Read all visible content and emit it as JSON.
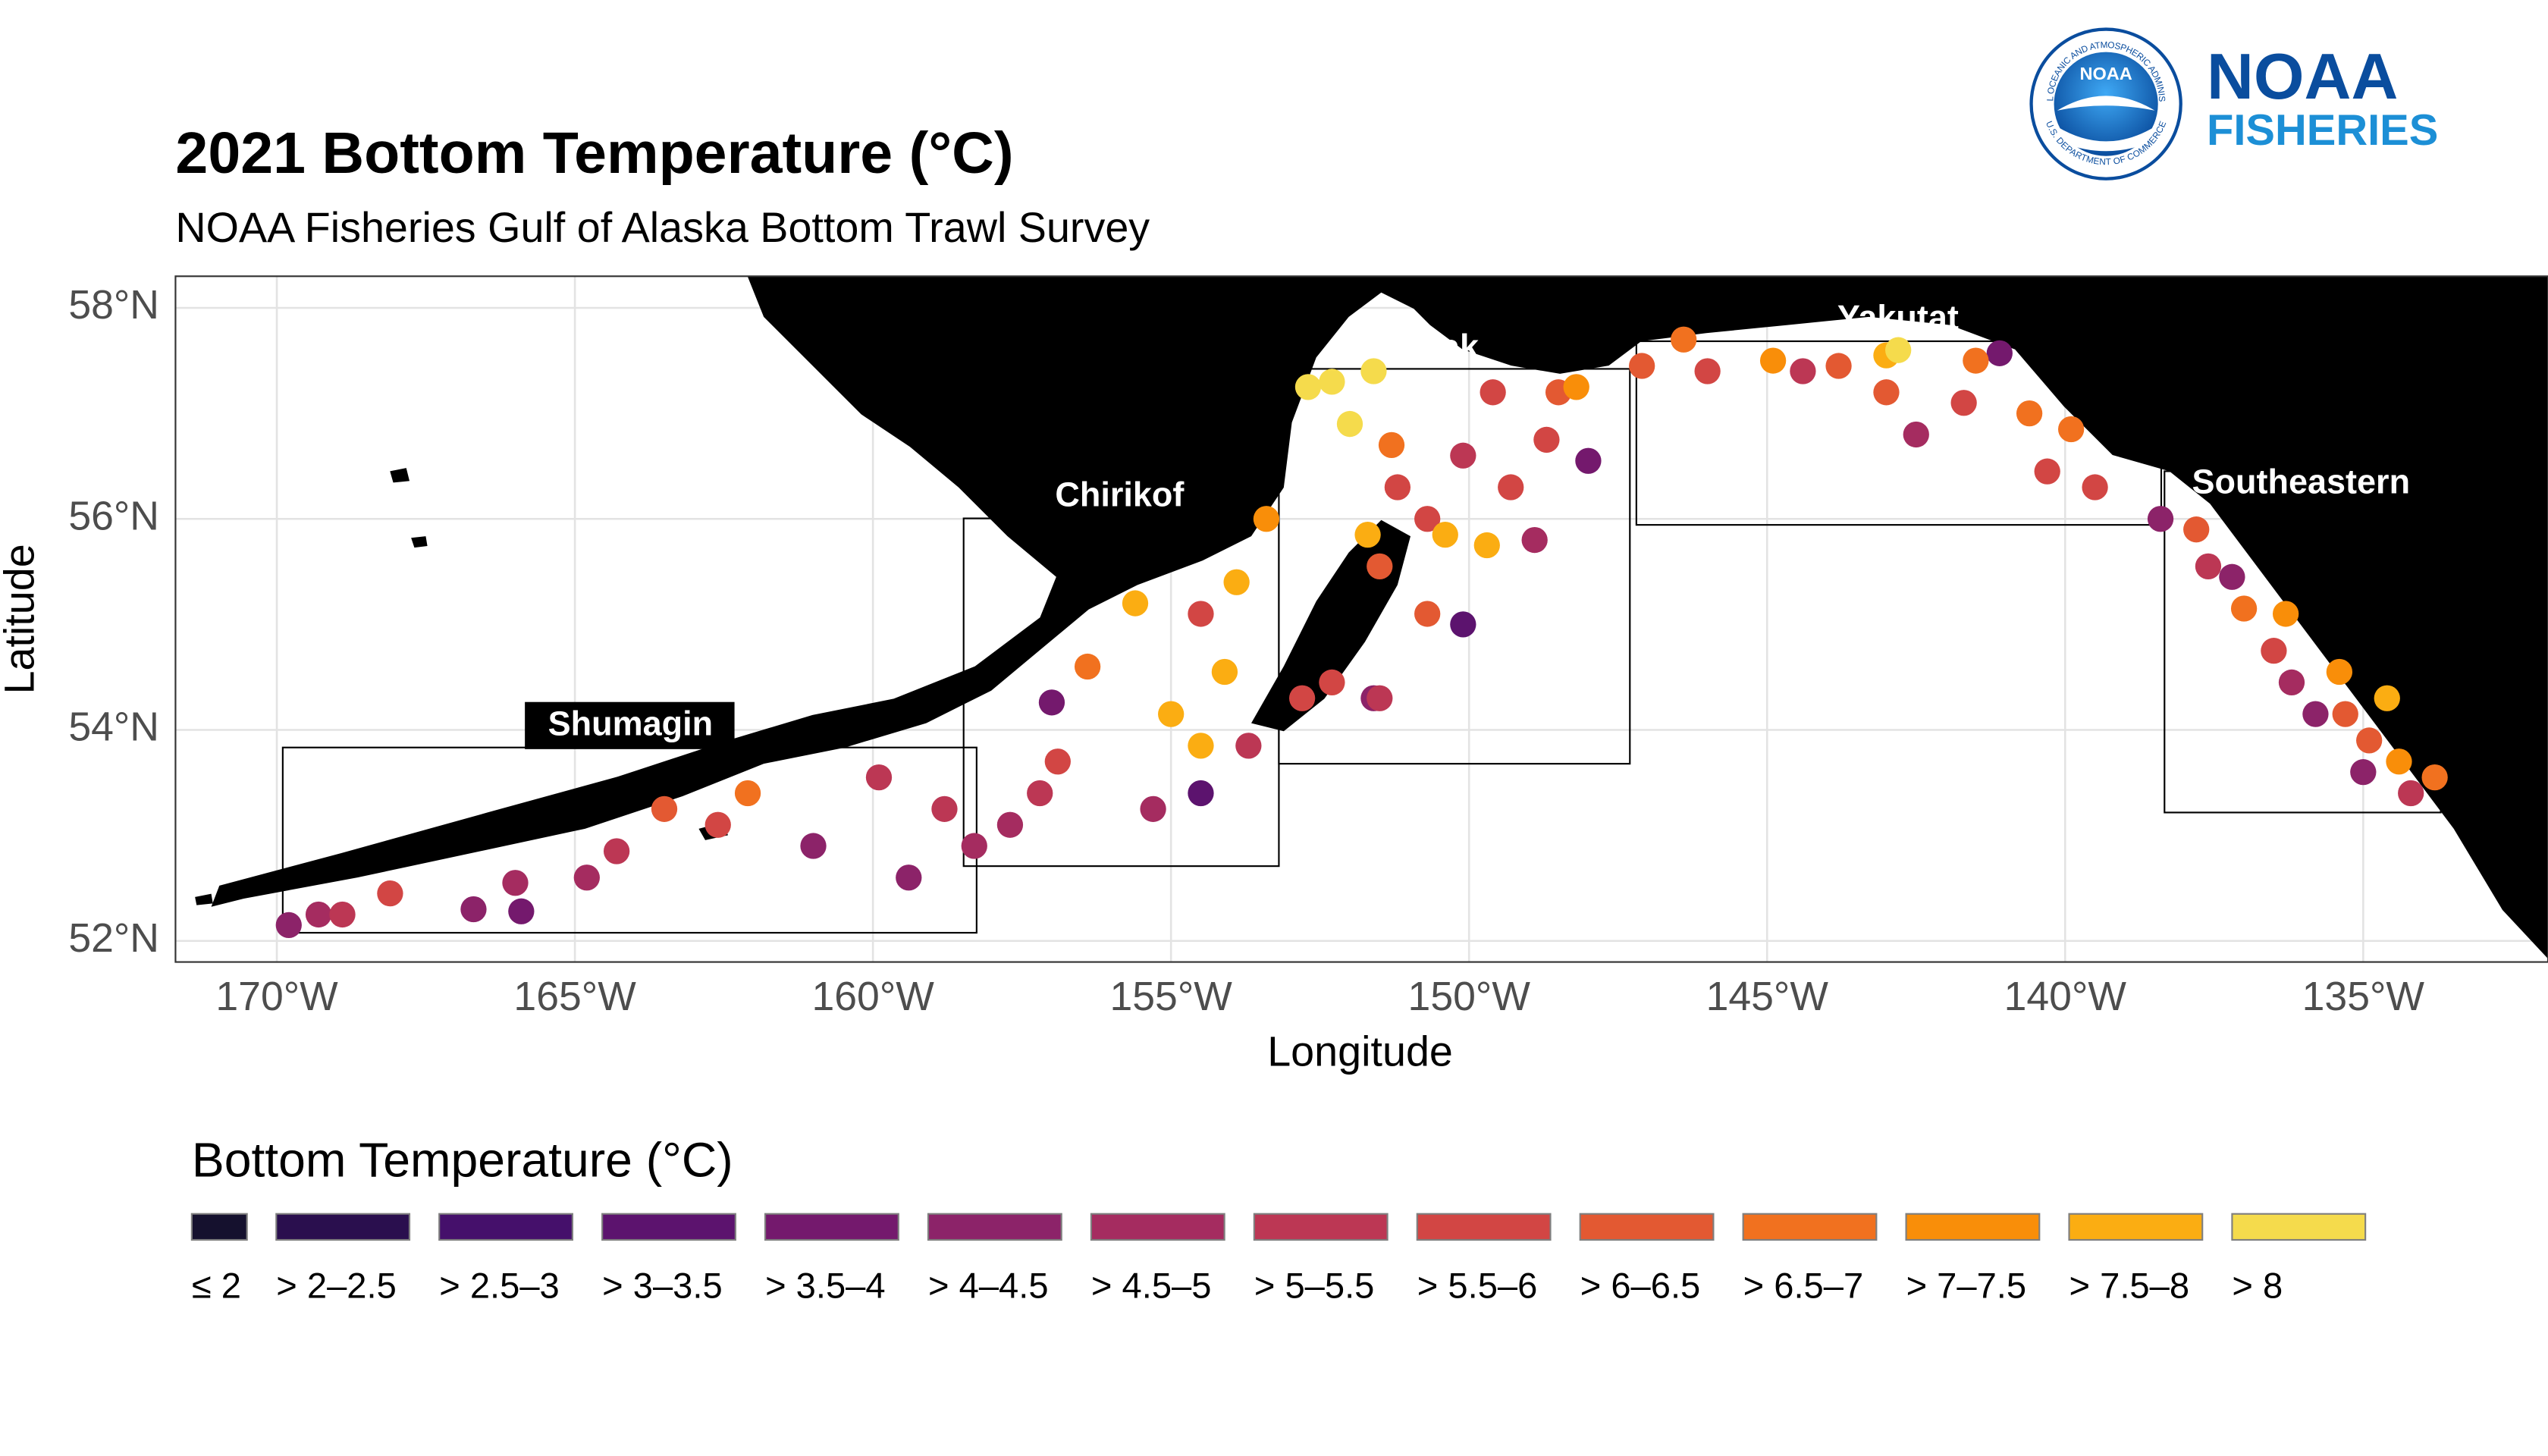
{
  "chart_data": {
    "type": "map",
    "title": "2021 Bottom Temperature (°C)",
    "subtitle": "NOAA Fisheries Gulf of Alaska Bottom Trawl Survey",
    "x_label": "Longitude",
    "y_label": "Latitude",
    "xlim": [
      -171.7,
      -131.9
    ],
    "ylim": [
      51.8,
      58.3
    ],
    "xticks": [
      {
        "value": -170,
        "label": "170°W"
      },
      {
        "value": -165,
        "label": "165°W"
      },
      {
        "value": -160,
        "label": "160°W"
      },
      {
        "value": -155,
        "label": "155°W"
      },
      {
        "value": -150,
        "label": "150°W"
      },
      {
        "value": -145,
        "label": "145°W"
      },
      {
        "value": -140,
        "label": "140°W"
      },
      {
        "value": -135,
        "label": "135°W"
      }
    ],
    "yticks": [
      {
        "value": 52,
        "label": "52°N"
      },
      {
        "value": 54,
        "label": "54°N"
      },
      {
        "value": 56,
        "label": "56°N"
      },
      {
        "value": 58,
        "label": "58°N"
      }
    ],
    "grid": true,
    "regions": [
      "Shumagin",
      "Chirikof",
      "Kodiak",
      "Yakutat",
      "Southeastern"
    ],
    "legend_title": "Bottom Temperature (°C)",
    "series": [
      {
        "name": "≤ 2",
        "color": "#15112e",
        "x": [],
        "y": []
      },
      {
        "name": "> 2–2.5",
        "color": "#2a0f4e",
        "x": [],
        "y": []
      },
      {
        "name": "> 2.5–3",
        "color": "#45106b",
        "x": [],
        "y": []
      },
      {
        "name": "> 3–3.5",
        "color": "#5c136e",
        "x": [
          -150.1,
          -154.5
        ],
        "y": [
          55.0,
          53.4
        ]
      },
      {
        "name": "> 3.5–4",
        "color": "#74196d",
        "x": [
          -157.0,
          -148.0,
          -141.1,
          -165.9
        ],
        "y": [
          54.26,
          56.55,
          57.57,
          52.28
        ]
      },
      {
        "name": "> 4–4.5",
        "color": "#8c2369",
        "x": [
          -169.8,
          -166.7,
          -161.0,
          -159.4,
          -151.6,
          -138.4,
          -135.8,
          -135.0,
          -137.2
        ],
        "y": [
          52.15,
          52.3,
          52.9,
          52.6,
          54.3,
          56.0,
          54.15,
          53.6,
          55.45
        ]
      },
      {
        "name": "> 4.5–5",
        "color": "#a52c60",
        "x": [
          -169.3,
          -166.0,
          -158.3,
          -155.3,
          -148.9,
          -142.5,
          -136.2,
          -164.8,
          -157.7
        ],
        "y": [
          52.25,
          52.55,
          52.9,
          53.25,
          55.8,
          56.8,
          54.45,
          52.6,
          53.1
        ]
      },
      {
        "name": "> 5–5.5",
        "color": "#bc3754",
        "x": [
          -168.9,
          -164.3,
          -159.9,
          -158.8,
          -153.7,
          -151.5,
          -137.6,
          -134.2,
          -144.4,
          -157.2,
          -150.1
        ],
        "y": [
          52.25,
          52.85,
          53.55,
          53.25,
          53.85,
          54.3,
          55.55,
          53.4,
          57.4,
          53.4,
          56.6
        ]
      },
      {
        "name": "> 5.5–6",
        "color": "#d24644",
        "x": [
          -168.1,
          -162.6,
          -156.9,
          -154.5,
          -151.2,
          -150.7,
          -149.3,
          -148.7,
          -149.6,
          -146.0,
          -141.7,
          -140.3,
          -139.5,
          -136.5,
          -152.8,
          -152.3
        ],
        "y": [
          52.45,
          53.1,
          53.7,
          55.1,
          56.3,
          56.0,
          56.3,
          56.75,
          57.2,
          57.4,
          57.1,
          56.45,
          56.3,
          54.75,
          54.3,
          54.45
        ]
      },
      {
        "name": "> 6–6.5",
        "color": "#e35932",
        "x": [
          -163.5,
          -151.5,
          -150.7,
          -148.5,
          -143.8,
          -143.0,
          -137.8,
          -135.3,
          -134.9,
          -147.1
        ],
        "y": [
          53.25,
          55.55,
          55.1,
          57.2,
          57.45,
          57.2,
          55.9,
          54.15,
          53.9,
          57.45
        ]
      },
      {
        "name": "> 6.5–7",
        "color": "#f1711f",
        "x": [
          -162.1,
          -156.4,
          -146.4,
          -141.5,
          -140.6,
          -139.9,
          -137.0,
          -133.8,
          -151.3
        ],
        "y": [
          53.4,
          54.6,
          57.7,
          57.5,
          57.0,
          56.85,
          55.15,
          53.55,
          56.7
        ]
      },
      {
        "name": "> 7–7.5",
        "color": "#f98e09",
        "x": [
          -148.2,
          -136.3,
          -135.4,
          -134.4,
          -144.9,
          -153.4
        ],
        "y": [
          57.25,
          55.1,
          54.55,
          53.7,
          57.5,
          56.0
        ]
      },
      {
        "name": "> 7.5–8",
        "color": "#fbad12",
        "x": [
          -155.6,
          -155.0,
          -154.5,
          -154.1,
          -153.9,
          -151.7,
          -150.4,
          -149.7,
          -143.0,
          -134.6
        ],
        "y": [
          55.2,
          54.15,
          53.85,
          54.55,
          55.4,
          55.85,
          55.85,
          55.75,
          57.55,
          54.3
        ]
      },
      {
        "name": "> 8",
        "color": "#f5db4c",
        "x": [
          -152.7,
          -152.3,
          -151.6,
          -152.0,
          -142.8
        ],
        "y": [
          57.25,
          57.3,
          57.4,
          56.9,
          57.6
        ]
      }
    ]
  },
  "logo": {
    "wordmark": "NOAA",
    "subtitle": "FISHERIES",
    "seal": "NOAA",
    "ring_top": "NATIONAL OCEANIC AND ATMOSPHERIC ADMINISTRATION",
    "ring_bottom": "U.S. DEPARTMENT OF COMMERCE"
  }
}
